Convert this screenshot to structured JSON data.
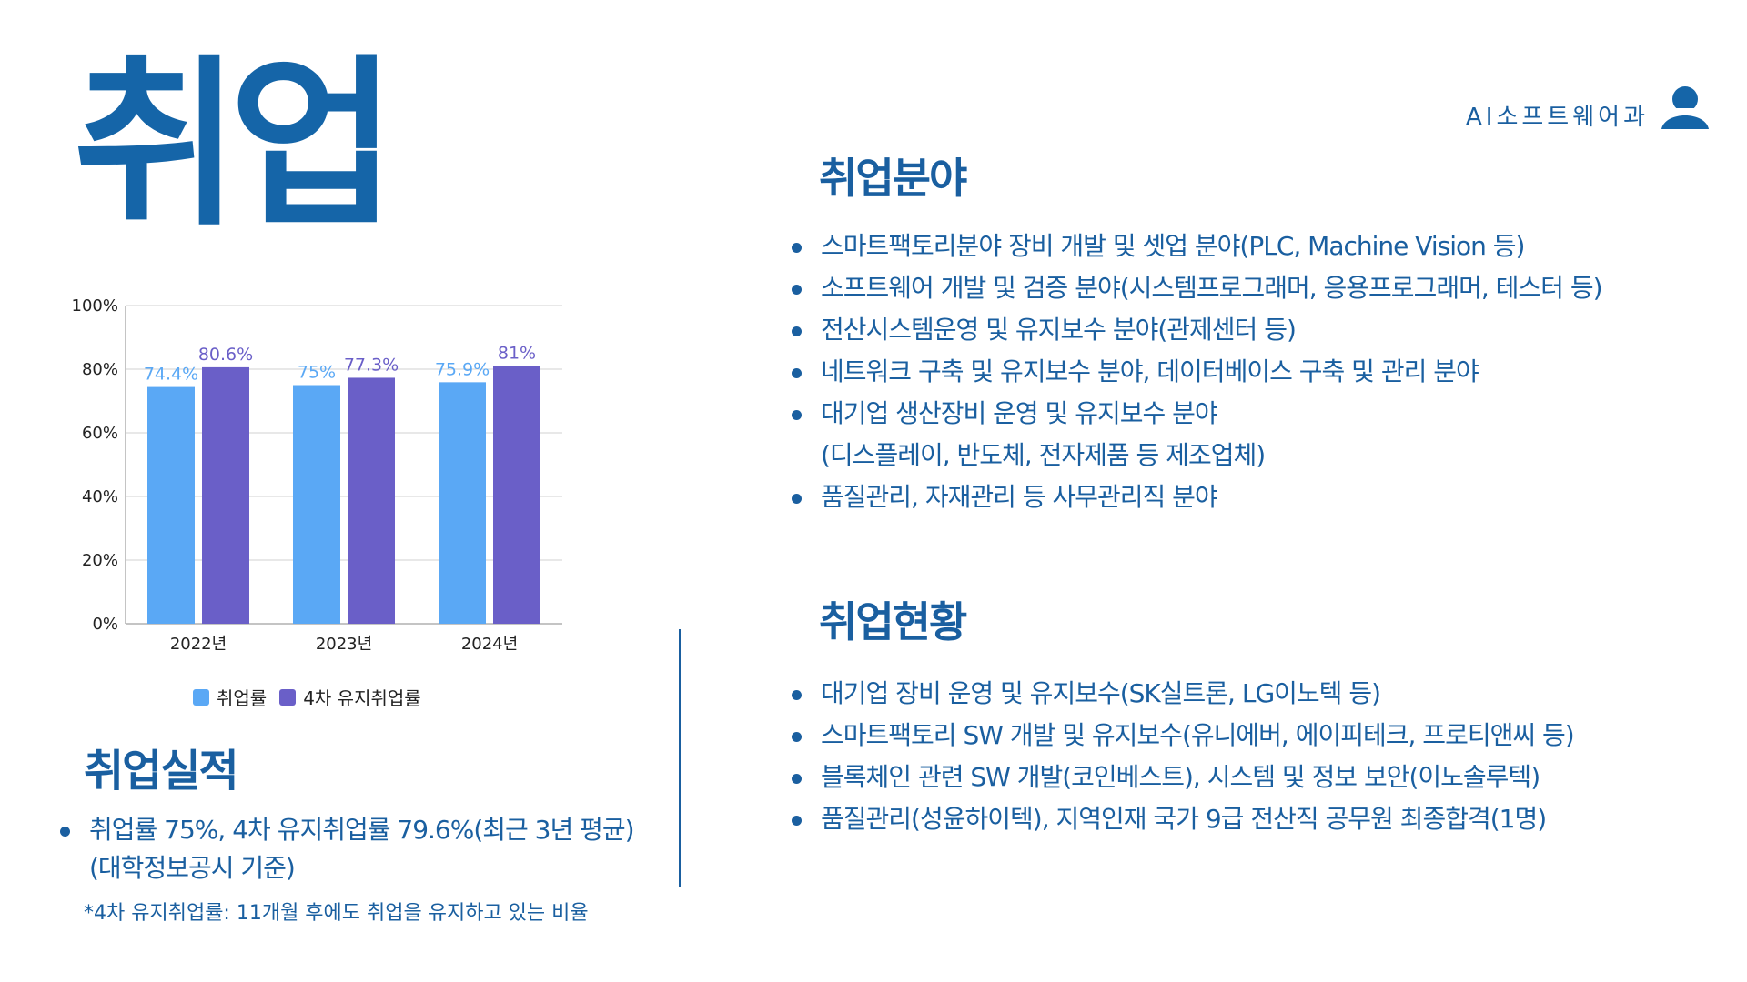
{
  "page": {
    "big_title": "취업",
    "department": "AI소프트웨어과"
  },
  "fields": {
    "title": "취업분야",
    "items": [
      {
        "line1": "스마트팩토리분야 장비 개발 및 셋업 분야(PLC, Machine Vision 등)",
        "line2": ""
      },
      {
        "line1": "소프트웨어 개발 및 검증 분야(시스템프로그래머, 응용프로그래머, 테스터 등)",
        "line2": ""
      },
      {
        "line1": "전산시스템운영 및 유지보수 분야(관제센터 등)",
        "line2": ""
      },
      {
        "line1": "네트워크 구축 및 유지보수 분야, 데이터베이스 구축 및 관리 분야",
        "line2": ""
      },
      {
        "line1": "대기업 생산장비 운영 및 유지보수 분야",
        "line2": "(디스플레이, 반도체, 전자제품 등 제조업체)"
      },
      {
        "line1": "품질관리, 자재관리 등 사무관리직 분야",
        "line2": ""
      }
    ]
  },
  "status": {
    "title": "취업현황",
    "items": [
      "대기업 장비 운영 및 유지보수(SK실트론, LG이노텍 등)",
      "스마트팩토리 SW 개발 및 유지보수(유니에버, 에이피테크, 프로티앤씨 등)",
      "블록체인 관련 SW 개발(코인베스트), 시스템 및 정보 보안(이노솔루텍)",
      "품질관리(성윤하이텍), 지역인재 국가 9급 전산직 공무원 최종합격(1명)"
    ]
  },
  "performance": {
    "title": "취업실적",
    "line1": "취업률 75%, 4차 유지취업률 79.6%(최근 3년 평균)",
    "line2": "(대학정보공시 기준)",
    "footnote": "*4차 유지취업률: 11개월 후에도 취업을 유지하고 있는 비율"
  },
  "chart_data": {
    "type": "bar",
    "categories": [
      "2022년",
      "2023년",
      "2024년"
    ],
    "series": [
      {
        "name": "취업률",
        "values": [
          74.4,
          75,
          75.9
        ],
        "labels": [
          "74.4%",
          "75%",
          "75.9%"
        ],
        "color": "#5aa8f5",
        "label_color": "#5aa8f5"
      },
      {
        "name": "4차 유지취업률",
        "values": [
          80.6,
          77.3,
          81
        ],
        "labels": [
          "80.6%",
          "77.3%",
          "81%"
        ],
        "color": "#6a5fc8",
        "label_color": "#6a5fc8"
      }
    ],
    "ylim": [
      0,
      100
    ],
    "yticks": [
      "0%",
      "20%",
      "40%",
      "60%",
      "80%",
      "100%"
    ],
    "ytick_values": [
      0,
      20,
      40,
      60,
      80,
      100
    ],
    "grid": true,
    "legend": "bottom"
  },
  "colors": {
    "accent": "#1a5fa0",
    "title_blue": "#1565a8"
  }
}
